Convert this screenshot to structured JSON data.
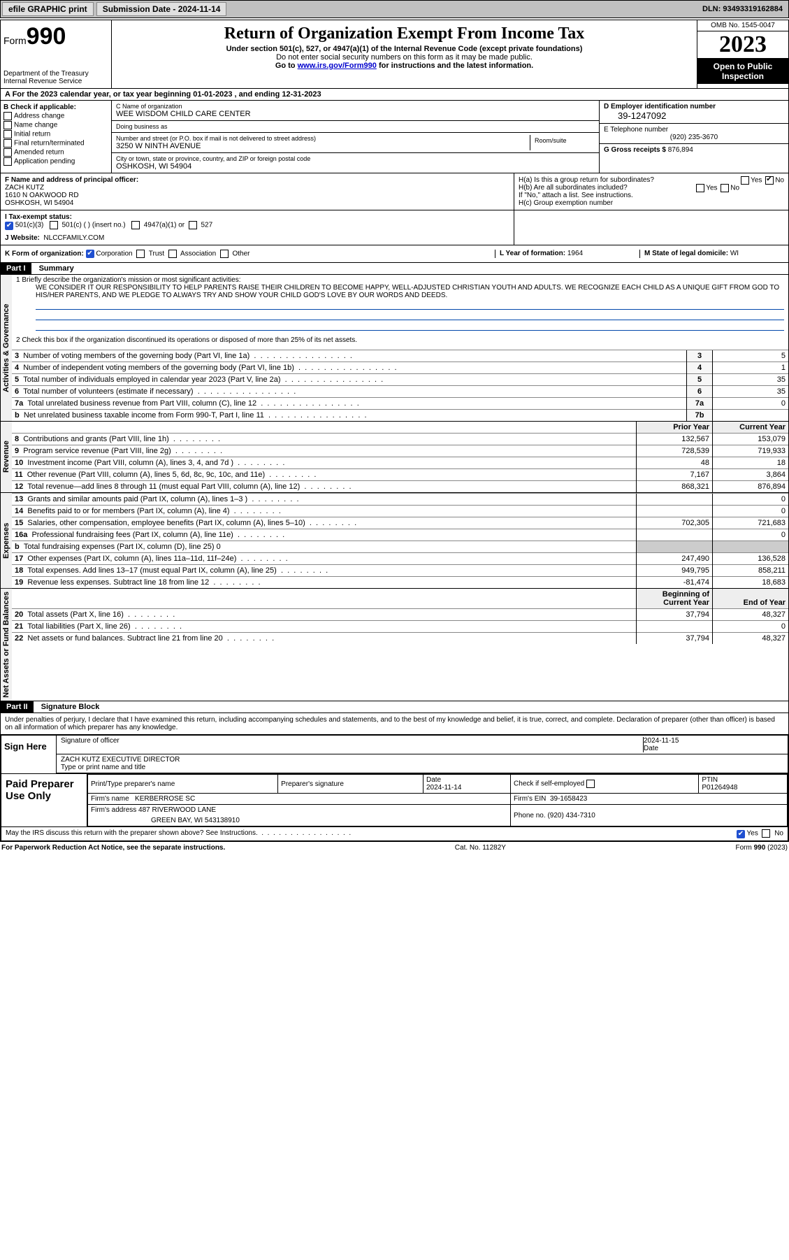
{
  "topbar": {
    "efile": "efile GRAPHIC print",
    "submission_label": "Submission Date - 2024-11-14",
    "dln": "DLN: 93493319162884"
  },
  "header": {
    "form_word": "Form",
    "form_num": "990",
    "dept": "Department of the Treasury",
    "irs": "Internal Revenue Service",
    "title": "Return of Organization Exempt From Income Tax",
    "sub1": "Under section 501(c), 527, or 4947(a)(1) of the Internal Revenue Code (except private foundations)",
    "sub2": "Do not enter social security numbers on this form as it may be made public.",
    "goto_pre": "Go to ",
    "goto_link": "www.irs.gov/Form990",
    "goto_post": " for instructions and the latest information.",
    "omb": "OMB No. 1545-0047",
    "year": "2023",
    "open": "Open to Public Inspection"
  },
  "lineA": {
    "text_pre": "A  For the 2023 calendar year, or tax year beginning ",
    "begin": "01-01-2023",
    "mid": "  , and ending ",
    "end": "12-31-2023"
  },
  "B": {
    "label": "B Check if applicable:",
    "opts": [
      "Address change",
      "Name change",
      "Initial return",
      "Final return/terminated",
      "Amended return",
      "Application pending"
    ]
  },
  "C": {
    "name_lbl": "C Name of organization",
    "name": "WEE WISDOM CHILD CARE CENTER",
    "dba_lbl": "Doing business as",
    "dba": "",
    "addr_lbl": "Number and street (or P.O. box if mail is not delivered to street address)",
    "room_lbl": "Room/suite",
    "addr": "3250 W NINTH AVENUE",
    "city_lbl": "City or town, state or province, country, and ZIP or foreign postal code",
    "city": "OSHKOSH, WI  54904"
  },
  "D": {
    "ein_lbl": "D Employer identification number",
    "ein": "39-1247092",
    "phone_lbl": "E Telephone number",
    "phone": "(920) 235-3670",
    "gross_lbl": "G Gross receipts $",
    "gross": "876,894"
  },
  "F": {
    "label": "F Name and address of principal officer:",
    "name": "ZACH KUTZ",
    "addr1": "1610 N OAKWOOD RD",
    "addr2": "OSHKOSH, WI  54904"
  },
  "H": {
    "a": "H(a)  Is this a group return for subordinates?",
    "a_yes": "Yes",
    "a_no": "No",
    "b": "H(b)  Are all subordinates included?",
    "b_note": "If \"No,\" attach a list. See instructions.",
    "c": "H(c)  Group exemption number"
  },
  "I": {
    "label": "I   Tax-exempt status:",
    "o1": "501(c)(3)",
    "o2": "501(c) (  ) (insert no.)",
    "o3": "4947(a)(1) or",
    "o4": "527"
  },
  "J": {
    "label": "J   Website:",
    "value": "NLCCFAMILY.COM"
  },
  "K": {
    "label": "K Form of organization:",
    "o1": "Corporation",
    "o2": "Trust",
    "o3": "Association",
    "o4": "Other"
  },
  "L": {
    "label": "L Year of formation:",
    "value": "1964"
  },
  "M": {
    "label": "M State of legal domicile:",
    "value": "WI"
  },
  "part1": {
    "hdr": "Part I",
    "title": "Summary"
  },
  "p1_1_lbl": "1   Briefly describe the organization's mission or most significant activities:",
  "p1_1_txt": "WE CONSIDER IT OUR RESPONSIBILITY TO HELP PARENTS RAISE THEIR CHILDREN TO BECOME HAPPY, WELL-ADJUSTED CHRISTIAN YOUTH AND ADULTS. WE RECOGNIZE EACH CHILD AS A UNIQUE GIFT FROM GOD TO HIS/HER PARENTS, AND WE PLEDGE TO ALWAYS TRY AND SHOW YOUR CHILD GOD'S LOVE BY OUR WORDS AND DEEDS.",
  "p1_2": "2   Check this box       if the organization discontinued its operations or disposed of more than 25% of its net assets.",
  "gov_rows": [
    {
      "n": "3",
      "d": "Number of voting members of the governing body (Part VI, line 1a)",
      "l": "3",
      "v": "5"
    },
    {
      "n": "4",
      "d": "Number of independent voting members of the governing body (Part VI, line 1b)",
      "l": "4",
      "v": "1"
    },
    {
      "n": "5",
      "d": "Total number of individuals employed in calendar year 2023 (Part V, line 2a)",
      "l": "5",
      "v": "35"
    },
    {
      "n": "6",
      "d": "Total number of volunteers (estimate if necessary)",
      "l": "6",
      "v": "35"
    },
    {
      "n": "7a",
      "d": "Total unrelated business revenue from Part VIII, column (C), line 12",
      "l": "7a",
      "v": "0"
    },
    {
      "n": "b",
      "d": "Net unrelated business taxable income from Form 990-T, Part I, line 11",
      "l": "7b",
      "v": ""
    }
  ],
  "rev_hdr": {
    "py": "Prior Year",
    "cy": "Current Year"
  },
  "rev_rows": [
    {
      "n": "8",
      "d": "Contributions and grants (Part VIII, line 1h)",
      "py": "132,567",
      "cy": "153,079"
    },
    {
      "n": "9",
      "d": "Program service revenue (Part VIII, line 2g)",
      "py": "728,539",
      "cy": "719,933"
    },
    {
      "n": "10",
      "d": "Investment income (Part VIII, column (A), lines 3, 4, and 7d )",
      "py": "48",
      "cy": "18"
    },
    {
      "n": "11",
      "d": "Other revenue (Part VIII, column (A), lines 5, 6d, 8c, 9c, 10c, and 11e)",
      "py": "7,167",
      "cy": "3,864"
    },
    {
      "n": "12",
      "d": "Total revenue—add lines 8 through 11 (must equal Part VIII, column (A), line 12)",
      "py": "868,321",
      "cy": "876,894"
    }
  ],
  "exp_rows": [
    {
      "n": "13",
      "d": "Grants and similar amounts paid (Part IX, column (A), lines 1–3 )",
      "py": "",
      "cy": "0"
    },
    {
      "n": "14",
      "d": "Benefits paid to or for members (Part IX, column (A), line 4)",
      "py": "",
      "cy": "0"
    },
    {
      "n": "15",
      "d": "Salaries, other compensation, employee benefits (Part IX, column (A), lines 5–10)",
      "py": "702,305",
      "cy": "721,683"
    },
    {
      "n": "16a",
      "d": "Professional fundraising fees (Part IX, column (A), line 11e)",
      "py": "",
      "cy": "0"
    },
    {
      "n": "b",
      "d": "Total fundraising expenses (Part IX, column (D), line 25) 0",
      "py": "",
      "cy": "",
      "nb": true
    },
    {
      "n": "17",
      "d": "Other expenses (Part IX, column (A), lines 11a–11d, 11f–24e)",
      "py": "247,490",
      "cy": "136,528"
    },
    {
      "n": "18",
      "d": "Total expenses. Add lines 13–17 (must equal Part IX, column (A), line 25)",
      "py": "949,795",
      "cy": "858,211"
    },
    {
      "n": "19",
      "d": "Revenue less expenses. Subtract line 18 from line 12",
      "py": "-81,474",
      "cy": "18,683"
    }
  ],
  "na_hdr": {
    "py": "Beginning of Current Year",
    "cy": "End of Year"
  },
  "na_rows": [
    {
      "n": "20",
      "d": "Total assets (Part X, line 16)",
      "py": "37,794",
      "cy": "48,327"
    },
    {
      "n": "21",
      "d": "Total liabilities (Part X, line 26)",
      "py": "",
      "cy": "0"
    },
    {
      "n": "22",
      "d": "Net assets or fund balances. Subtract line 21 from line 20",
      "py": "37,794",
      "cy": "48,327"
    }
  ],
  "side": {
    "gov": "Activities & Governance",
    "rev": "Revenue",
    "exp": "Expenses",
    "na": "Net Assets or Fund Balances"
  },
  "part2": {
    "hdr": "Part II",
    "title": "Signature Block"
  },
  "perjury": "Under penalties of perjury, I declare that I have examined this return, including accompanying schedules and statements, and to the best of my knowledge and belief, it is true, correct, and complete. Declaration of preparer (other than officer) is based on all information of which preparer has any knowledge.",
  "sign": {
    "here": "Sign Here",
    "sig_lbl": "Signature of officer",
    "date_lbl": "Date",
    "date": "2024-11-15",
    "name": "ZACH KUTZ  EXECUTIVE DIRECTOR",
    "name_lbl": "Type or print name and title"
  },
  "prep": {
    "here": "Paid Preparer Use Only",
    "h1": "Print/Type preparer's name",
    "h2": "Preparer's signature",
    "h3": "Date",
    "h4": "Check         if self-employed",
    "h5": "PTIN",
    "date": "2024-11-14",
    "ptin": "P01264948",
    "firm_lbl": "Firm's name",
    "firm": "KERBERROSE SC",
    "ein_lbl": "Firm's EIN",
    "ein": "39-1658423",
    "addr_lbl": "Firm's address",
    "addr1": "487 RIVERWOOD LANE",
    "addr2": "GREEN BAY, WI  543138910",
    "phone_lbl": "Phone no.",
    "phone": "(920) 434-7310"
  },
  "discuss": {
    "q": "May the IRS discuss this return with the preparer shown above? See Instructions.",
    "yes": "Yes",
    "no": "No"
  },
  "footer": {
    "left": "For Paperwork Reduction Act Notice, see the separate instructions.",
    "mid": "Cat. No. 11282Y",
    "right": "Form 990 (2023)"
  }
}
